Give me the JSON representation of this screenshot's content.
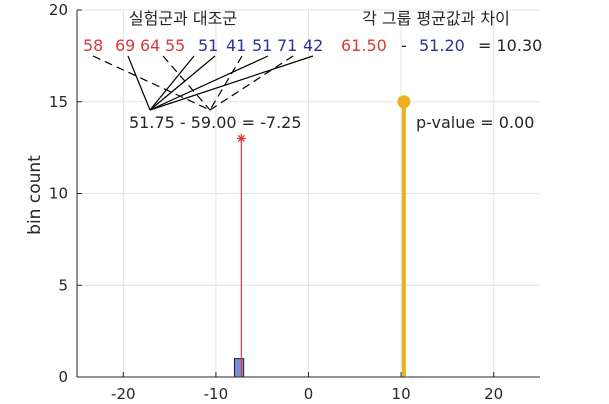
{
  "chart_data": {
    "type": "bar",
    "title": "",
    "xlabel": "",
    "ylabel": "bin count",
    "xlim": [
      -25,
      25
    ],
    "ylim": [
      0,
      20
    ],
    "xticks": [
      -20,
      -10,
      0,
      10,
      20
    ],
    "yticks": [
      0,
      5,
      10,
      15,
      20
    ],
    "grid": true,
    "histogram_bins": [
      {
        "x0": -8.0,
        "x1": -7.0,
        "count": 1
      }
    ],
    "stems": [
      {
        "name": "permuted",
        "x": -7.25,
        "y": 13,
        "marker": "asterisk",
        "color": "#d63a3a"
      },
      {
        "name": "observed",
        "x": 10.3,
        "y": 15,
        "marker": "circle",
        "color": "#edb120"
      }
    ],
    "annotations": {
      "left_title": "실험군과 대조군",
      "group_a": [
        "58",
        "69",
        "64",
        "55"
      ],
      "group_b": [
        "51",
        "41",
        "51",
        "71",
        "42"
      ],
      "shuffled_eq": "51.75 - 59.00 = -7.25",
      "right_title": "각 그룹 평균값과 차이",
      "mean_a": "61.50",
      "minus": "-",
      "mean_b": "51.20",
      "diff": "= 10.30",
      "pvalue": "p-value = 0.00"
    },
    "colors": {
      "red": "#d63a3a",
      "blue": "#2b3496",
      "gold": "#edb120",
      "bar": "#7b8dd8"
    }
  }
}
